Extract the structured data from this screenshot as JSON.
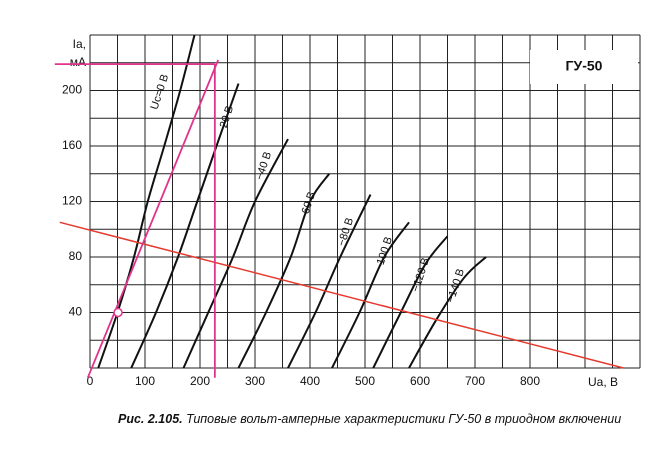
{
  "chart_data": {
    "type": "line",
    "box_label": "ГУ-50",
    "y_label": [
      "Ia,",
      "мА"
    ],
    "x_label": "Ua, В",
    "caption_number": "Рис. 2.105.",
    "caption": "Типовые вольт-амперные характеристики ГУ-50 в триодном включении",
    "xlim": [
      0,
      1000
    ],
    "ylim": [
      0,
      240
    ],
    "xticks": [
      0,
      100,
      200,
      300,
      400,
      500,
      600,
      700,
      800
    ],
    "yticks": [
      40,
      80,
      120,
      160,
      200
    ],
    "grid": true,
    "xgrid": [
      0,
      50,
      100,
      150,
      200,
      250,
      300,
      350,
      400,
      450,
      500,
      550,
      600,
      650,
      700,
      750,
      800,
      850,
      900,
      950,
      1000
    ],
    "ygrid": [
      0,
      20,
      40,
      60,
      80,
      100,
      120,
      140,
      160,
      180,
      200,
      220,
      240
    ],
    "series": [
      {
        "name": "Uc=0 В",
        "color": "#111111",
        "x": [
          15,
          50,
          80,
          105,
          135,
          164,
          190
        ],
        "y": [
          0,
          40,
          80,
          120,
          160,
          200,
          240
        ]
      },
      {
        "name": "−20 В",
        "color": "#111111",
        "x": [
          75,
          120,
          160,
          195,
          230,
          270
        ],
        "y": [
          0,
          40,
          80,
          120,
          160,
          205
        ]
      },
      {
        "name": "−40 В",
        "color": "#111111",
        "x": [
          170,
          215,
          260,
          300,
          360
        ],
        "y": [
          0,
          40,
          80,
          120,
          165
        ]
      },
      {
        "name": "−60 В",
        "color": "#111111",
        "x": [
          270,
          320,
          365,
          400,
          435
        ],
        "y": [
          0,
          40,
          80,
          120,
          140
        ]
      },
      {
        "name": "−80 В",
        "color": "#111111",
        "x": [
          360,
          410,
          455,
          510
        ],
        "y": [
          0,
          40,
          80,
          125
        ]
      },
      {
        "name": "−100 В",
        "color": "#111111",
        "x": [
          440,
          490,
          535,
          580
        ],
        "y": [
          0,
          40,
          80,
          105
        ]
      },
      {
        "name": "−120 В",
        "color": "#111111",
        "x": [
          515,
          565,
          610,
          650
        ],
        "y": [
          0,
          40,
          75,
          95
        ]
      },
      {
        "name": "−140 В",
        "color": "#111111",
        "x": [
          580,
          630,
          680,
          720
        ],
        "y": [
          0,
          35,
          65,
          80
        ]
      }
    ],
    "load_line": {
      "color": "#e53a2e",
      "x": [
        -55,
        970
      ],
      "y": [
        105,
        0
      ]
    },
    "construction": {
      "color": "#e0338c",
      "lines": [
        {
          "x": [
            -64,
            227
          ],
          "y": [
            219,
            219
          ]
        },
        {
          "x": [
            227,
            227
          ],
          "y": [
            219,
            -7
          ]
        },
        {
          "x": [
            -4,
            233
          ],
          "y": [
            -7,
            222
          ]
        }
      ],
      "point": {
        "x": 51,
        "y": 40
      }
    }
  }
}
